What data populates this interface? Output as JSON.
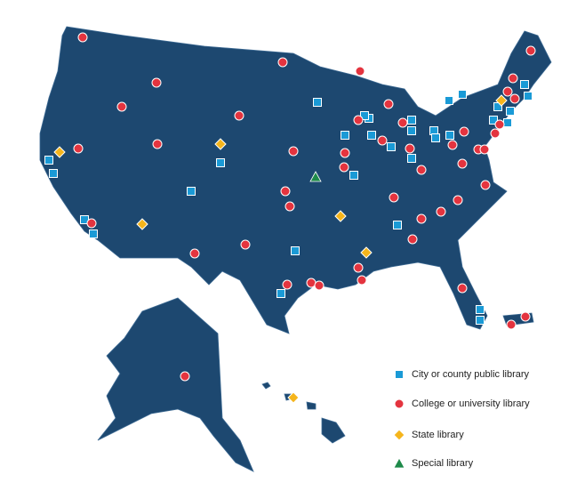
{
  "legend": {
    "items": [
      {
        "label": "City or county public library",
        "color": "#1a9ad6"
      },
      {
        "label": "College or university library",
        "color": "#e4343f"
      },
      {
        "label": "State library",
        "color": "#f5b51c"
      },
      {
        "label": "Special library",
        "color": "#1e8a4a"
      }
    ]
  }
}
